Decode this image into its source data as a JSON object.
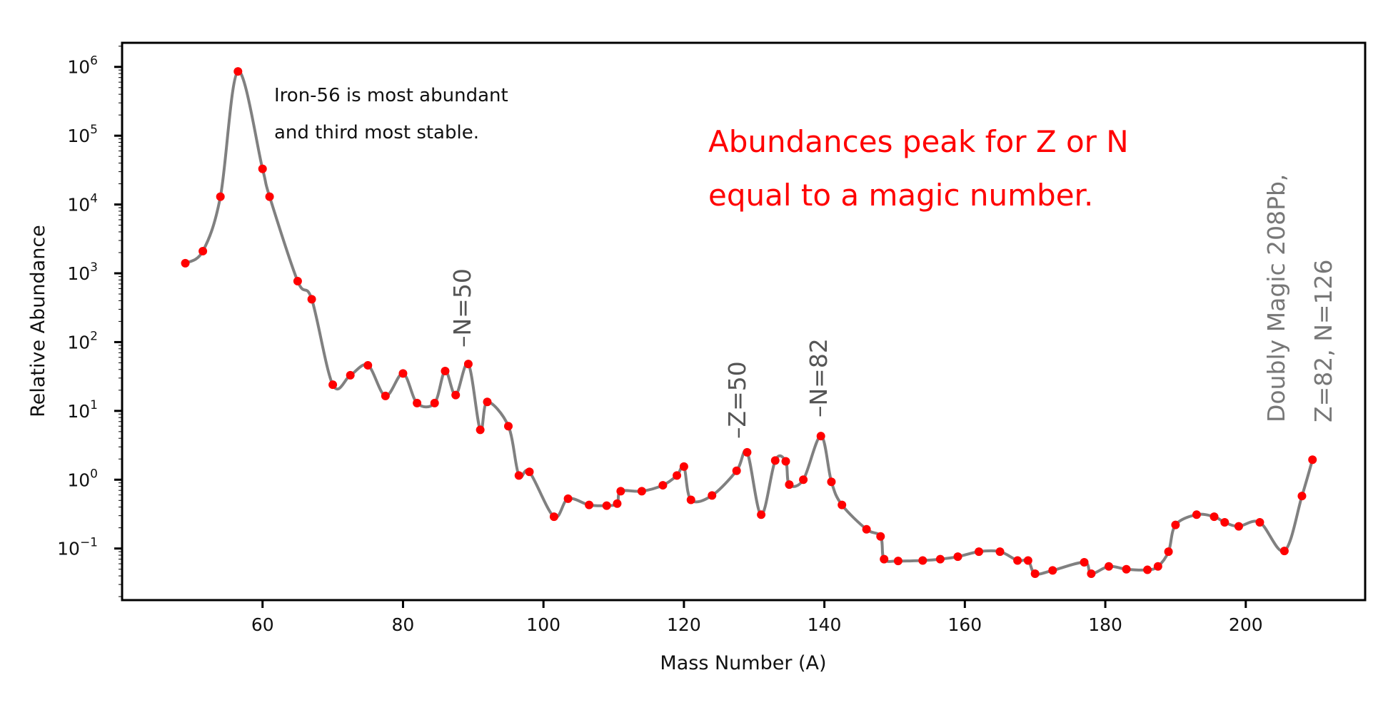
{
  "chart_data": {
    "type": "line",
    "xlabel": "Mass Number (A)",
    "ylabel": "Relative Abundance",
    "yscale": "log",
    "xlim": [
      40,
      217
    ],
    "ylim_exp": [
      -1.75,
      6.35
    ],
    "x_ticks": [
      60,
      80,
      100,
      120,
      140,
      160,
      180,
      200
    ],
    "y_ticks": [
      {
        "base": "10",
        "exp": "6",
        "value": 6
      },
      {
        "base": "10",
        "exp": "5",
        "value": 5
      },
      {
        "base": "10",
        "exp": "4",
        "value": 4
      },
      {
        "base": "10",
        "exp": "3",
        "value": 3
      },
      {
        "base": "10",
        "exp": "2",
        "value": 2
      },
      {
        "base": "10",
        "exp": "1",
        "value": 1
      },
      {
        "base": "10",
        "exp": "0",
        "value": 0
      },
      {
        "base": "10",
        "exp": "−1",
        "value": -1
      }
    ],
    "grid": false,
    "line_color": "#808080",
    "marker_color": "#ff0000",
    "series": [
      {
        "x": [
          49,
          51.5,
          54,
          56.5,
          60,
          61,
          65,
          67,
          70,
          72.5,
          75,
          77.5,
          80,
          82,
          84.5,
          86,
          87.5,
          89.3,
          91,
          92,
          95,
          96.5,
          98,
          101.5,
          103.5,
          106.5,
          109,
          110.5,
          111,
          114,
          117,
          119,
          120,
          121,
          124,
          127.5,
          129,
          131,
          133,
          134.5,
          135,
          137,
          139.5,
          141,
          142.5,
          146,
          148,
          148.5,
          150.5,
          154,
          156.5,
          159,
          162,
          165,
          167.5,
          169,
          170,
          172.5,
          177,
          178,
          180.5,
          183,
          186,
          187.5,
          189,
          190,
          193,
          195.5,
          197,
          199,
          202,
          205.5,
          208,
          209.5
        ],
        "y": [
          1400.0,
          2100.0,
          13000.0,
          860000.0,
          33000.0,
          13000.0,
          770.0,
          420.0,
          24,
          33,
          46,
          16.5,
          35,
          13,
          13,
          38,
          17,
          48,
          5.3,
          13.5,
          6,
          1.15,
          1.3,
          0.29,
          0.53,
          0.43,
          0.42,
          0.45,
          0.68,
          0.68,
          0.83,
          1.15,
          1.55,
          0.51,
          0.59,
          1.35,
          2.5,
          0.31,
          1.9,
          1.85,
          0.85,
          1.0,
          4.3,
          0.93,
          0.43,
          0.19,
          0.15,
          0.07,
          0.066,
          0.067,
          0.07,
          0.076,
          0.09,
          0.09,
          0.067,
          0.067,
          0.043,
          0.048,
          0.063,
          0.043,
          0.055,
          0.05,
          0.049,
          0.055,
          0.09,
          0.22,
          0.31,
          0.29,
          0.24,
          0.21,
          0.24,
          0.092,
          0.58,
          1.95
        ]
      }
    ],
    "annotations": {
      "iron_line1": "Iron-56 is most abundant",
      "iron_line2": "and third most stable.",
      "peak_line1": "Abundances peak for Z or N",
      "peak_line2": "equal to a magic number.",
      "n50": "–N=50",
      "z50": "–Z=50",
      "n82": "–N=82",
      "doubly_line1": "Doubly Magic 208Pb,",
      "doubly_line2": "Z=82, N=126"
    }
  }
}
